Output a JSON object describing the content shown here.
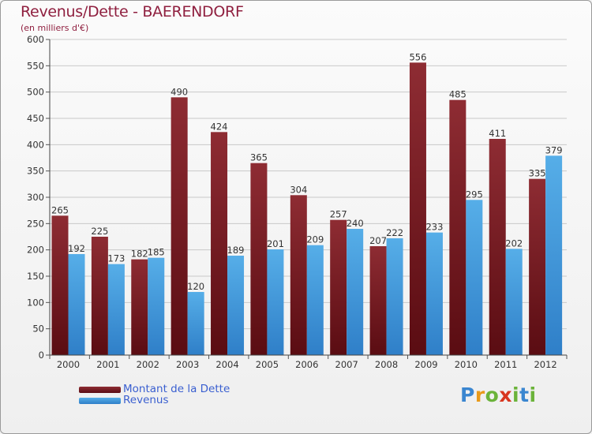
{
  "title": "Revenus/Dette - BAERENDORF",
  "subtitle": "(en milliers d'€)",
  "logo": {
    "text": "Proxiti",
    "colors": [
      "#3a86d0",
      "#6bb33a",
      "#e89a1a",
      "#d8361f"
    ]
  },
  "chart_data": {
    "type": "bar",
    "title": "Revenus/Dette - BAERENDORF",
    "subtitle": "(en milliers d'€)",
    "categories": [
      "2000",
      "2001",
      "2002",
      "2003",
      "2004",
      "2005",
      "2006",
      "2007",
      "2008",
      "2009",
      "2010",
      "2011",
      "2012"
    ],
    "series": [
      {
        "name": "Montant de la Dette",
        "color": "#7a1a22",
        "values": [
          265,
          225,
          182,
          490,
          424,
          365,
          304,
          257,
          207,
          556,
          485,
          411,
          335
        ]
      },
      {
        "name": "Revenus",
        "color": "#4a9fe0",
        "values": [
          192,
          173,
          185,
          120,
          189,
          201,
          209,
          240,
          222,
          233,
          295,
          202,
          379
        ]
      }
    ],
    "ylim": [
      0,
      600
    ],
    "yticks": [
      0,
      50,
      100,
      150,
      200,
      250,
      300,
      350,
      400,
      450,
      500,
      550,
      600
    ],
    "grid": true,
    "legend": "bottom-left"
  }
}
